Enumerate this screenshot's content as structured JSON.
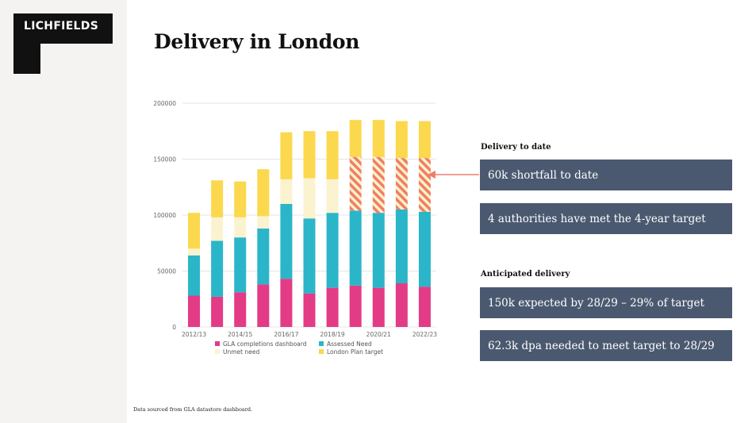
{
  "brand": {
    "logo_text": "LICHFIELDS"
  },
  "header": {
    "title": "Delivery in London"
  },
  "right_panel": {
    "delivery_heading": "Delivery to date",
    "delivery_items": [
      "60k shortfall to date",
      "4 authorities have met the 4-year target"
    ],
    "anticipated_heading": "Anticipated delivery",
    "anticipated_items": [
      "150k expected by 28/29 – 29% of target",
      "62.3k dpa needed to meet target to 28/29"
    ]
  },
  "footnote": "Data sourced from GLA datastore dashboard.",
  "colors": {
    "completions": "#e33b86",
    "assessed": "#2bb5c8",
    "unmet": "#fbf2cf",
    "target": "#fbd84d",
    "hatch": "#f07f62",
    "box": "#4b5970",
    "arrow": "#ef7b6b"
  },
  "chart_data": {
    "type": "bar",
    "stacked": true,
    "categories": [
      "2012/13",
      "2013/14",
      "2014/15",
      "2015/16",
      "2016/17",
      "2017/18",
      "2018/19",
      "2019/20",
      "2020/21",
      "2021/22",
      "2022/23"
    ],
    "tick_labels": [
      "2012/13",
      "2014/15",
      "2016/17",
      "2018/19",
      "2020/21",
      "2022/23"
    ],
    "ylim": [
      0,
      200000
    ],
    "yticks": [
      0,
      50000,
      100000,
      150000,
      200000
    ],
    "grid": true,
    "series": [
      {
        "name": "GLA completions dashboard",
        "values": [
          28000,
          27000,
          31000,
          38000,
          43000,
          30000,
          35000,
          37000,
          35000,
          39000,
          36000
        ]
      },
      {
        "name": "Assessed Need",
        "values": [
          36000,
          50000,
          49000,
          50000,
          67000,
          67000,
          67000,
          67000,
          67000,
          66000,
          67000
        ]
      },
      {
        "name": "Unmet need",
        "values": [
          6000,
          21000,
          18000,
          11000,
          22000,
          36000,
          30000,
          0,
          0,
          0,
          0
        ]
      },
      {
        "name": "London Plan target",
        "values": [
          32000,
          33000,
          32000,
          42000,
          42000,
          42000,
          43000,
          33000,
          33000,
          33000,
          33000
        ]
      }
    ],
    "hatched_unmet_need": [
      {
        "category": "2019/20",
        "value": 48000
      },
      {
        "category": "2020/21",
        "value": 50000
      },
      {
        "category": "2021/22",
        "value": 46000
      },
      {
        "category": "2022/23",
        "value": 48000
      }
    ],
    "legend_position": "bottom"
  }
}
